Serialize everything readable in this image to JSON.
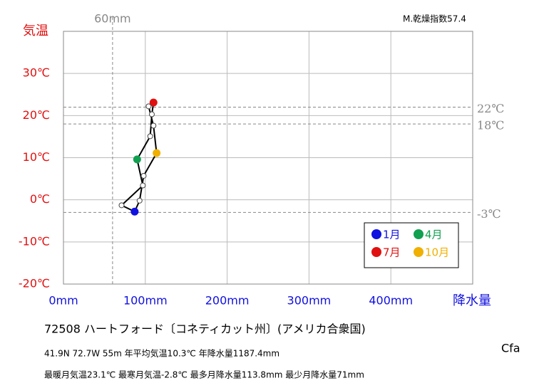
{
  "chart_data": {
    "type": "climograph",
    "title": "72508  ハートフォード〔コネティカット州〕(アメリカ合衆国)",
    "subtitle": "41.9N  72.7W 55m  年平均気温10.3℃ 年降水量1187.4mm",
    "caption": "最暖月気温23.1℃ 最寒月気温-2.8℃ 最多月降水量113.8mm 最少月降水量71mm",
    "climate_class": "Cfa",
    "dryness_index": "M.乾燥指数57.4",
    "ylabel": "気温",
    "xlabel": "降水量",
    "x": [
      87,
      71,
      97,
      90,
      106,
      108,
      110,
      104,
      110,
      113.8,
      98,
      93
    ],
    "values": [
      -2.8,
      -1.3,
      3.4,
      9.6,
      15.1,
      20.3,
      23.1,
      22.2,
      17.6,
      11.1,
      5.7,
      -0.2
    ],
    "point_colors": [
      "#1010e0",
      "#ffffff",
      "#ffffff",
      "#10a050",
      "#ffffff",
      "#ffffff",
      "#e01010",
      "#ffffff",
      "#ffffff",
      "#f0b000",
      "#ffffff",
      "#ffffff"
    ],
    "line_color": "#000000",
    "legend": [
      {
        "name": "1月",
        "color": "#1010e0"
      },
      {
        "name": "4月",
        "color": "#10a050"
      },
      {
        "name": "7月",
        "color": "#e01010"
      },
      {
        "name": "10月",
        "color": "#f0b000"
      }
    ],
    "xlim": [
      0,
      500
    ],
    "ylim": [
      -20,
      40
    ],
    "xticks": [
      {
        "value": 0,
        "label": "0mm"
      },
      {
        "value": 100,
        "label": "100mm"
      },
      {
        "value": 200,
        "label": "200mm"
      },
      {
        "value": 300,
        "label": "300mm"
      },
      {
        "value": 400,
        "label": "400mm"
      }
    ],
    "yticks": [
      {
        "value": -20,
        "label": "-20℃"
      },
      {
        "value": -10,
        "label": "-10℃"
      },
      {
        "value": 0,
        "label": "0℃"
      },
      {
        "value": 10,
        "label": "10℃"
      },
      {
        "value": 20,
        "label": "20℃"
      },
      {
        "value": 30,
        "label": "30℃"
      }
    ],
    "ref_lines_y": [
      {
        "value": 22,
        "label": "22℃"
      },
      {
        "value": 18,
        "label": "18℃"
      },
      {
        "value": -3,
        "label": "-3℃"
      }
    ],
    "ref_lines_x": [
      {
        "value": 60,
        "label": "60mm"
      }
    ],
    "grid": true
  }
}
